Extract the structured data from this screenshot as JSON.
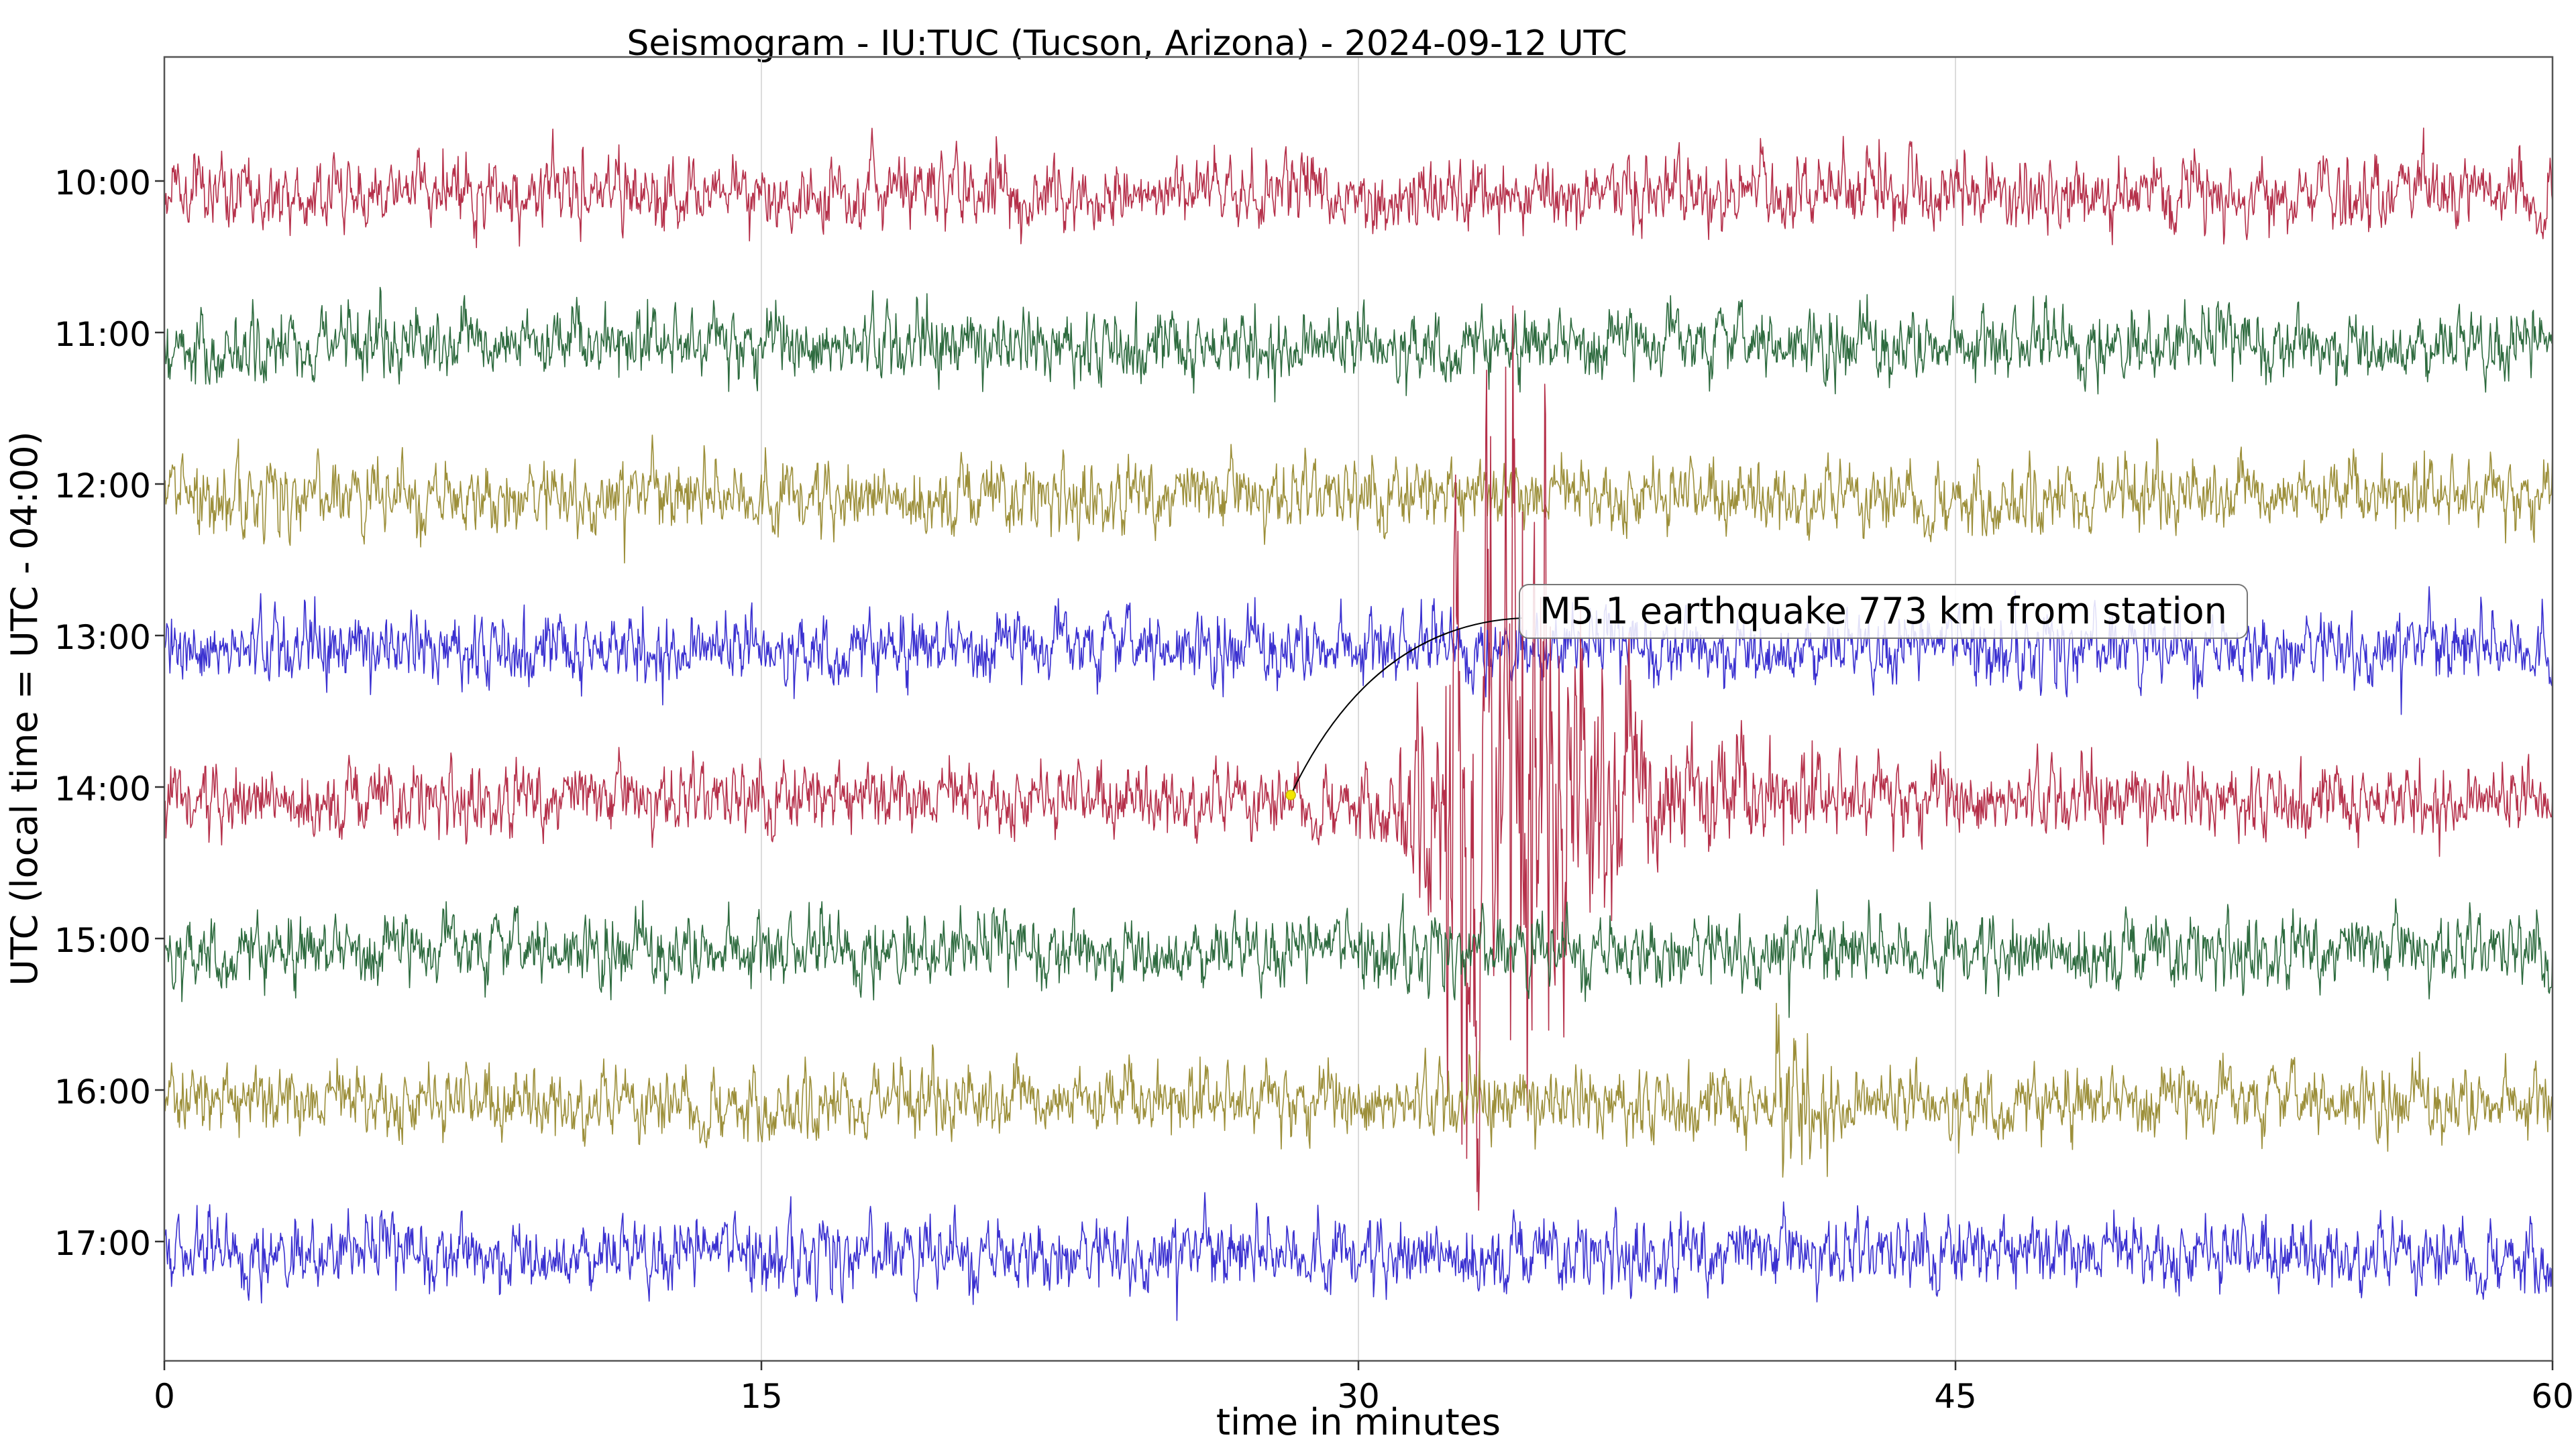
{
  "chart_data": {
    "type": "line",
    "title": "Seismogram - IU:TUC (Tucson, Arizona) - 2024-09-12 UTC",
    "xlabel": "time in minutes",
    "ylabel": "UTC (local time = UTC - 04:00)",
    "xlim": [
      0,
      60
    ],
    "x_ticks": [
      0,
      15,
      30,
      45,
      60
    ],
    "x_tick_labels": [
      "0",
      "15",
      "30",
      "45",
      "60"
    ],
    "y_tick_labels": [
      "10:00",
      "11:00",
      "12:00",
      "13:00",
      "14:00",
      "15:00",
      "16:00",
      "17:00"
    ],
    "grid": "vertical at x ticks",
    "series": [
      {
        "hour": "10:00",
        "color": "#b5304a",
        "noise": 0.18
      },
      {
        "hour": "11:00",
        "color": "#2e6b3f",
        "noise": 0.18
      },
      {
        "hour": "12:00",
        "color": "#9c8f3a",
        "noise": 0.18
      },
      {
        "hour": "13:00",
        "color": "#3a30d0",
        "noise": 0.18
      },
      {
        "hour": "14:00",
        "color": "#b5304a",
        "noise": 0.18
      },
      {
        "hour": "15:00",
        "color": "#2e6b3f",
        "noise": 0.18
      },
      {
        "hour": "16:00",
        "color": "#9c8f3a",
        "noise": 0.18
      },
      {
        "hour": "17:00",
        "color": "#3a30d0",
        "noise": 0.18
      }
    ],
    "event": {
      "trace": "14:00",
      "origin_minute": 28.3,
      "p_arrival_minute": 30.5,
      "peak_minute": 32.5,
      "secondary_trace": "16:00",
      "secondary_minute": 40.5
    },
    "annotation": {
      "text": "M5.1 earthquake 773 km from station",
      "marker_minute": 28.3,
      "marker_color": "#f2e600"
    }
  }
}
